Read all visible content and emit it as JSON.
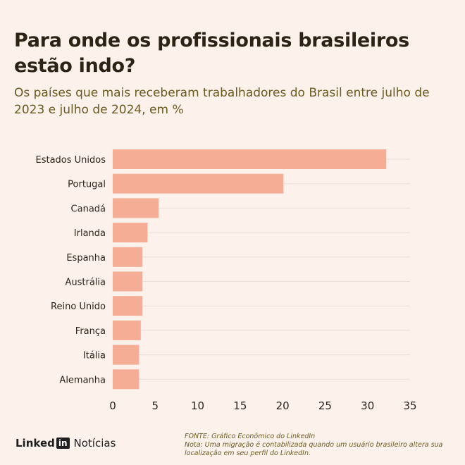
{
  "header": {
    "title": "Para onde os profissionais brasileiros estão indo?",
    "subtitle": "Os países que mais receberam trabalhadores do Brasil entre julho de 2023 e julho de 2024, em %"
  },
  "footer": {
    "brand": "Linked",
    "brand_box": "in",
    "section": "Notícias",
    "source": "FONTE: Gráfico Econômico do LinkedIn",
    "note": "Nota: Uma migração é contabilizada quando um usuário brasileiro altera sua localização em seu perfil do LinkedIn."
  },
  "chart_data": {
    "type": "bar",
    "orientation": "horizontal",
    "categories": [
      "Estados Unidos",
      "Portugal",
      "Canadá",
      "Irlanda",
      "Espanha",
      "Austrália",
      "Reino Unido",
      "França",
      "Itália",
      "Alemanha"
    ],
    "values": [
      32.2,
      20.1,
      5.4,
      4.1,
      3.5,
      3.5,
      3.5,
      3.3,
      3.1,
      3.1
    ],
    "xlim": [
      0,
      35
    ],
    "xticks": [
      0,
      5,
      10,
      15,
      20,
      25,
      30,
      35
    ],
    "bar_color": "#f5ad96",
    "grid": true
  }
}
